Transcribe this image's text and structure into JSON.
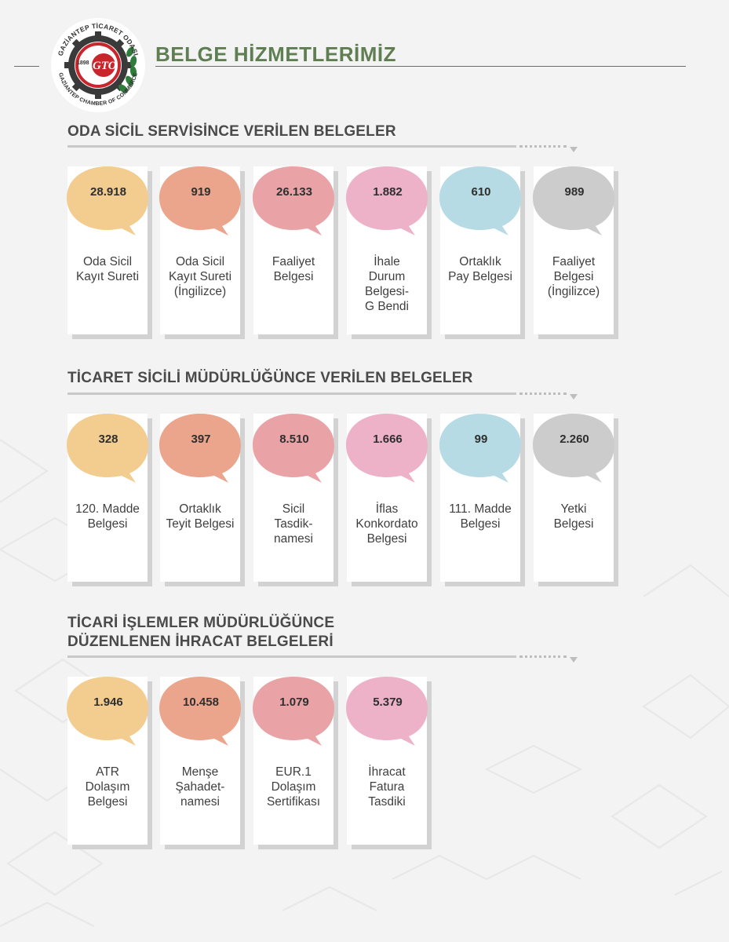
{
  "header": {
    "title": "BELGE HİZMETLERİMİZ",
    "logo": {
      "ring_text_top": "GAZİANTEP TİCARET ODASI",
      "ring_text_bottom": "GAZİANTEP CHAMBER OF COMMERCE",
      "year": "1898",
      "monogram": "GTO",
      "colors": {
        "red": "#c9252c",
        "green": "#2e7d3a",
        "dark": "#333333"
      }
    }
  },
  "colors": {
    "title_green": "#5f7f53",
    "yellow": "#f3cc8f",
    "salmon": "#eaa58c",
    "rose": "#e9a3a6",
    "pink": "#eeb2c8",
    "blue": "#b7dbe5",
    "gray": "#cccccc"
  },
  "sections": [
    {
      "title_lines": [
        "ODA SİCİL SERVİSİNCE VERİLEN BELGELER"
      ],
      "cards": [
        {
          "value": "28.918",
          "label": "Oda Sicil\nKayıt Sureti",
          "color": "#f3cc8f"
        },
        {
          "value": "919",
          "label": "Oda Sicil\nKayıt Sureti\n(İngilizce)",
          "color": "#eaa58c"
        },
        {
          "value": "26.133",
          "label": "Faaliyet\nBelgesi",
          "color": "#e9a3a6"
        },
        {
          "value": "1.882",
          "label": "İhale\nDurum\nBelgesi-\nG Bendi",
          "color": "#eeb2c8"
        },
        {
          "value": "610",
          "label": "Ortaklık\nPay Belgesi",
          "color": "#b7dbe5"
        },
        {
          "value": "989",
          "label": "Faaliyet\nBelgesi\n(İngilizce)",
          "color": "#cccccc"
        }
      ]
    },
    {
      "title_lines": [
        "TİCARET SİCİLİ MÜDÜRLÜĞÜNCE VERİLEN BELGELER"
      ],
      "cards": [
        {
          "value": "328",
          "label": "120. Madde\nBelgesi",
          "color": "#f3cc8f"
        },
        {
          "value": "397",
          "label": "Ortaklık\nTeyit Belgesi",
          "color": "#eaa58c"
        },
        {
          "value": "8.510",
          "label": "Sicil\nTasdik-\nnamesi",
          "color": "#e9a3a6"
        },
        {
          "value": "1.666",
          "label": "İflas\nKonkordato\nBelgesi",
          "color": "#eeb2c8"
        },
        {
          "value": "99",
          "label": "111. Madde\nBelgesi",
          "color": "#b7dbe5"
        },
        {
          "value": "2.260",
          "label": "Yetki\nBelgesi",
          "color": "#cccccc"
        }
      ]
    },
    {
      "title_lines": [
        "TİCARİ İŞLEMLER MÜDÜRLÜĞÜNCE",
        "DÜZENLENEN İHRACAT BELGELERİ"
      ],
      "cards": [
        {
          "value": "1.946",
          "label": "ATR\nDolaşım\nBelgesi",
          "color": "#f3cc8f"
        },
        {
          "value": "10.458",
          "label": "Menşe\nŞahadet-\nnamesi",
          "color": "#eaa58c"
        },
        {
          "value": "1.079",
          "label": "EUR.1\nDolaşım\nSertifikası",
          "color": "#e9a3a6"
        },
        {
          "value": "5.379",
          "label": "İhracat\nFatura\nTasdiki",
          "color": "#eeb2c8"
        }
      ]
    }
  ]
}
